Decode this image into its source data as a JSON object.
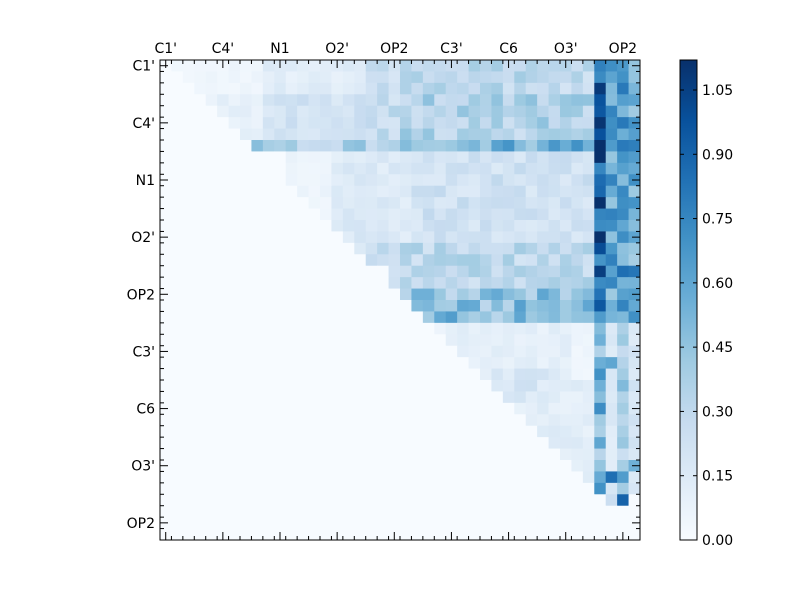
{
  "chart_data": {
    "type": "heatmap",
    "size": 42,
    "cmap": "Blues",
    "cmap_stops": [
      "#f7fbff",
      "#deebf7",
      "#c6dbef",
      "#9ecae1",
      "#6baed6",
      "#4292c6",
      "#2171b5",
      "#08519c",
      "#08306b"
    ],
    "vmin": 0.0,
    "vmax": 1.12,
    "tick_labels": [
      "C1'",
      "C4'",
      "N1",
      "O2'",
      "OP2",
      "C3'",
      "C6",
      "O3'",
      "OP2"
    ],
    "tick_positions": [
      0,
      5,
      10,
      15,
      20,
      25,
      30,
      35,
      40
    ],
    "colorbar": {
      "ticks": [
        0.0,
        0.15,
        0.3,
        0.45,
        0.6,
        0.75,
        0.9,
        1.05
      ],
      "labels": [
        "0.00",
        "0.15",
        "0.30",
        "0.45",
        "0.60",
        "0.75",
        "0.90",
        "1.05"
      ]
    },
    "upper_triangle_blocks": [
      {
        "rows": [
          0,
          3
        ],
        "cols": [
          1,
          9
        ],
        "value": 0.05
      },
      {
        "rows": [
          0,
          3
        ],
        "cols": [
          9,
          18
        ],
        "value": 0.12
      },
      {
        "rows": [
          0,
          3
        ],
        "cols": [
          18,
          21
        ],
        "value": 0.25
      },
      {
        "rows": [
          0,
          3
        ],
        "cols": [
          21,
          38
        ],
        "value": 0.3
      },
      {
        "rows": [
          3,
          8
        ],
        "cols": [
          3,
          9
        ],
        "value": 0.1
      },
      {
        "rows": [
          3,
          8
        ],
        "cols": [
          9,
          18
        ],
        "value": 0.2
      },
      {
        "rows": [
          3,
          8
        ],
        "cols": [
          18,
          21
        ],
        "value": 0.28
      },
      {
        "rows": [
          3,
          8
        ],
        "cols": [
          21,
          38
        ],
        "value": 0.35
      },
      {
        "rows": [
          7,
          8
        ],
        "cols": [
          8,
          21
        ],
        "value": 0.38
      },
      {
        "rows": [
          7,
          8
        ],
        "cols": [
          21,
          38
        ],
        "value": 0.52
      },
      {
        "rows": [
          8,
          18
        ],
        "cols": [
          11,
          15
        ],
        "value": 0.06
      },
      {
        "rows": [
          8,
          18
        ],
        "cols": [
          15,
          22
        ],
        "value": 0.15
      },
      {
        "rows": [
          8,
          18
        ],
        "cols": [
          22,
          38
        ],
        "value": 0.22
      },
      {
        "rows": [
          16,
          18
        ],
        "cols": [
          18,
          38
        ],
        "value": 0.3
      },
      {
        "rows": [
          18,
          21
        ],
        "cols": [
          20,
          38
        ],
        "value": 0.3
      },
      {
        "rows": [
          20,
          21
        ],
        "cols": [
          22,
          38
        ],
        "value": 0.4
      },
      {
        "rows": [
          21,
          23
        ],
        "cols": [
          22,
          38
        ],
        "value": 0.48
      },
      {
        "rows": [
          23,
          42
        ],
        "cols": [
          23,
          38
        ],
        "value": 0.05
      },
      {
        "rows": [
          23,
          32
        ],
        "cols": [
          25,
          36
        ],
        "value": 0.1
      },
      {
        "rows": [
          27,
          30
        ],
        "cols": [
          29,
          35
        ],
        "value": 0.18
      },
      {
        "rows": [
          28,
          40
        ],
        "cols": [
          33,
          38
        ],
        "value": 0.12
      }
    ],
    "bright_columns": [
      {
        "col": 38,
        "rows": [
          0,
          23
        ],
        "value": 0.92
      },
      {
        "col": 39,
        "rows": [
          0,
          23
        ],
        "value": 0.6
      },
      {
        "col": 40,
        "rows": [
          0,
          23
        ],
        "value": 0.62
      },
      {
        "col": 41,
        "rows": [
          0,
          23
        ],
        "value": 0.55
      },
      {
        "col": 38,
        "rows": [
          23,
          38
        ],
        "value": 0.45
      },
      {
        "col": 39,
        "rows": [
          23,
          38
        ],
        "value": 0.15
      },
      {
        "col": 40,
        "rows": [
          23,
          38
        ],
        "value": 0.35
      },
      {
        "col": 41,
        "rows": [
          23,
          38
        ],
        "value": 0.18
      }
    ],
    "highlight_cells": [
      {
        "r": 2,
        "c": 38,
        "v": 1.08
      },
      {
        "r": 5,
        "c": 38,
        "v": 1.1
      },
      {
        "r": 7,
        "c": 38,
        "v": 1.12
      },
      {
        "r": 6,
        "c": 38,
        "v": 0.98
      },
      {
        "r": 7,
        "c": 40,
        "v": 0.8
      },
      {
        "r": 7,
        "c": 41,
        "v": 0.78
      },
      {
        "r": 18,
        "c": 38,
        "v": 1.06
      },
      {
        "r": 18,
        "c": 40,
        "v": 0.85
      },
      {
        "r": 18,
        "c": 41,
        "v": 0.82
      },
      {
        "r": 19,
        "c": 39,
        "v": 0.75
      },
      {
        "r": 21,
        "c": 38,
        "v": 0.95
      },
      {
        "r": 24,
        "c": 38,
        "v": 0.55
      },
      {
        "r": 26,
        "c": 39,
        "v": 0.6
      },
      {
        "r": 27,
        "c": 38,
        "v": 0.7
      },
      {
        "r": 28,
        "c": 40,
        "v": 0.5
      },
      {
        "r": 30,
        "c": 38,
        "v": 0.72
      },
      {
        "r": 33,
        "c": 38,
        "v": 0.6
      },
      {
        "r": 35,
        "c": 41,
        "v": 0.55
      },
      {
        "r": 36,
        "c": 39,
        "v": 0.85
      },
      {
        "r": 36,
        "c": 40,
        "v": 0.65
      },
      {
        "r": 37,
        "c": 38,
        "v": 0.7
      },
      {
        "r": 37,
        "c": 40,
        "v": 0.4
      },
      {
        "r": 38,
        "c": 40,
        "v": 0.9
      },
      {
        "r": 38,
        "c": 39,
        "v": 0.25
      },
      {
        "r": 20,
        "c": 22,
        "v": 0.55
      },
      {
        "r": 20,
        "c": 23,
        "v": 0.55
      },
      {
        "r": 20,
        "c": 29,
        "v": 0.58
      },
      {
        "r": 20,
        "c": 33,
        "v": 0.6
      },
      {
        "r": 7,
        "c": 29,
        "v": 0.62
      },
      {
        "r": 7,
        "c": 16,
        "v": 0.45
      },
      {
        "r": 2,
        "c": 29,
        "v": 0.4
      },
      {
        "r": 4,
        "c": 20,
        "v": 0.35
      }
    ]
  }
}
